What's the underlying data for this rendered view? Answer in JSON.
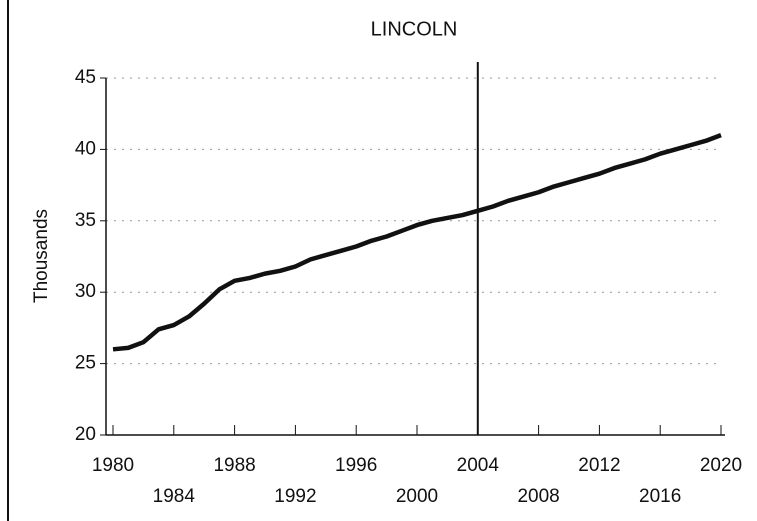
{
  "chart_data": {
    "type": "line",
    "title": "LINCOLN",
    "y_label": "Thousands",
    "x": [
      1980,
      1981,
      1982,
      1983,
      1984,
      1985,
      1986,
      1987,
      1988,
      1989,
      1990,
      1991,
      1992,
      1993,
      1994,
      1995,
      1996,
      1997,
      1998,
      1999,
      2000,
      2001,
      2002,
      2003,
      2004,
      2005,
      2006,
      2007,
      2008,
      2009,
      2010,
      2011,
      2012,
      2013,
      2014,
      2015,
      2016,
      2017,
      2018,
      2019,
      2020
    ],
    "series": [
      {
        "name": "Lincoln",
        "color": "#111111",
        "values": [
          26.0,
          26.1,
          26.5,
          27.4,
          27.7,
          28.3,
          29.2,
          30.2,
          30.8,
          31.0,
          31.3,
          31.5,
          31.8,
          32.3,
          32.6,
          32.9,
          33.2,
          33.6,
          33.9,
          34.3,
          34.7,
          35.0,
          35.2,
          35.4,
          35.7,
          36.0,
          36.4,
          36.7,
          37.0,
          37.4,
          37.7,
          38.0,
          38.3,
          38.7,
          39.0,
          39.3,
          39.7,
          40.0,
          40.3,
          40.6,
          41.0
        ]
      }
    ],
    "xlim": [
      1980,
      2020
    ],
    "xticks": [
      1980,
      1984,
      1988,
      1992,
      1996,
      2000,
      2004,
      2008,
      2012,
      2016,
      2020
    ],
    "ylim": [
      20,
      45
    ],
    "yticks": [
      20,
      25,
      30,
      35,
      40,
      45
    ],
    "grid": true,
    "vline": 2004
  }
}
